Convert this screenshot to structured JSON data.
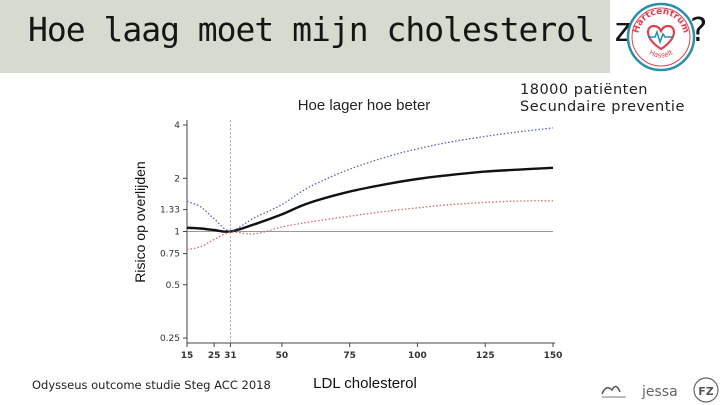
{
  "slide": {
    "title": "Hoe laag moet mijn cholesterol zijn?",
    "note_line1": "18000 patiënten",
    "note_line2": "Secundaire preventie",
    "source": "Odysseus outcome studie Steg ACC 2018",
    "logo": {
      "name": "hartcentrum-hasselt-logo",
      "text_top": "Hartcentrum",
      "text_bottom": "Hasselt",
      "color": "#e04050",
      "ring_color": "#2a8fa8"
    },
    "footer_logos": [
      "jessa-logo",
      "tfz-logo"
    ],
    "footer_logo_text": [
      "jessa",
      "FZ"
    ]
  },
  "chart_data": {
    "type": "line",
    "title": "Hoe lager hoe beter",
    "xlabel": "LDL cholesterol",
    "ylabel": "Risico op overlijden",
    "x_ticks": [
      15,
      25,
      31,
      50,
      75,
      100,
      125,
      150
    ],
    "y_ticks": [
      0.25,
      0.5,
      0.75,
      1,
      1.33,
      2,
      4
    ],
    "y_tick_labels": [
      "0.25",
      "0.5",
      "0.75",
      "1",
      "1.33",
      "2",
      "4"
    ],
    "y_scale": "log",
    "xlim": [
      15,
      150
    ],
    "ylim": [
      0.25,
      4
    ],
    "reference_x": 31,
    "reference_y": 1,
    "series": [
      {
        "role": "estimate",
        "color": "#111111",
        "style": "solid",
        "x": [
          15,
          20,
          25,
          31,
          40,
          50,
          60,
          75,
          90,
          100,
          110,
          125,
          140,
          150
        ],
        "y": [
          1.05,
          1.04,
          1.02,
          1.0,
          1.1,
          1.25,
          1.45,
          1.68,
          1.87,
          1.98,
          2.07,
          2.18,
          2.25,
          2.29
        ]
      },
      {
        "role": "upper-ci",
        "color": "#5566aa",
        "style": "dotted",
        "x": [
          15,
          20,
          25,
          31,
          40,
          50,
          60,
          75,
          90,
          100,
          110,
          125,
          140,
          150
        ],
        "y": [
          1.48,
          1.38,
          1.18,
          1.01,
          1.2,
          1.42,
          1.78,
          2.25,
          2.68,
          2.93,
          3.16,
          3.45,
          3.7,
          3.85
        ]
      },
      {
        "role": "lower-ci",
        "color": "#d06a6a",
        "style": "dotted",
        "x": [
          15,
          20,
          25,
          31,
          40,
          50,
          60,
          75,
          90,
          100,
          110,
          125,
          140,
          150
        ],
        "y": [
          0.79,
          0.82,
          0.9,
          0.99,
          0.97,
          1.06,
          1.13,
          1.22,
          1.31,
          1.36,
          1.41,
          1.46,
          1.49,
          1.49
        ]
      }
    ]
  }
}
